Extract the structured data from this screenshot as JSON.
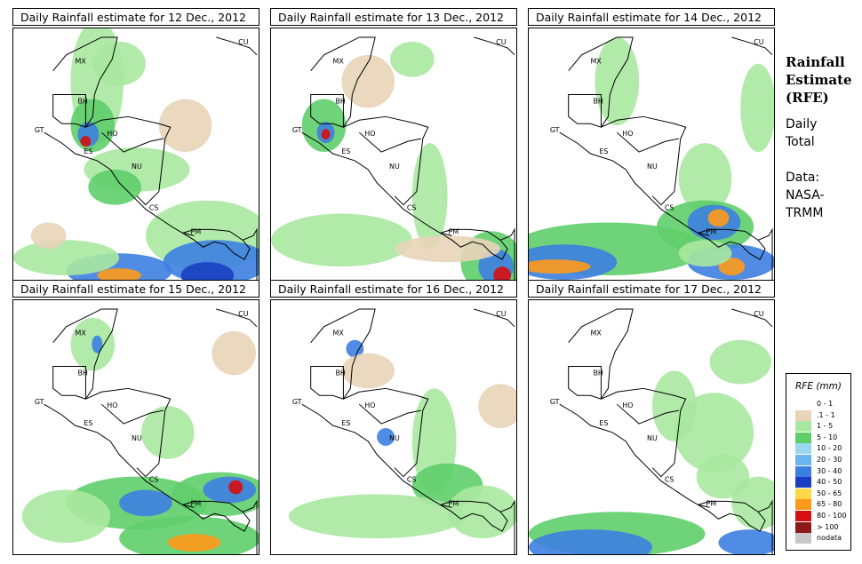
{
  "panels": [
    {
      "title": "Daily Rainfall estimate for  12 Dec., 2012",
      "blobs": [
        [
          95,
          60,
          30,
          70,
          "#a8e8a0"
        ],
        [
          90,
          110,
          25,
          30,
          "#5fce6a"
        ],
        [
          85,
          120,
          12,
          14,
          "#3d7fe0"
        ],
        [
          82,
          128,
          6,
          6,
          "#d61010"
        ],
        [
          120,
          40,
          30,
          25,
          "#a8e8a0"
        ],
        [
          140,
          160,
          60,
          25,
          "#a8e8a0"
        ],
        [
          115,
          180,
          30,
          20,
          "#5fce6a"
        ],
        [
          220,
          235,
          70,
          40,
          "#a8e8a0"
        ],
        [
          230,
          265,
          60,
          25,
          "#3d7fe0"
        ],
        [
          220,
          280,
          30,
          15,
          "#1a3fc0"
        ],
        [
          120,
          275,
          60,
          20,
          "#3d7fe0"
        ],
        [
          120,
          280,
          25,
          8,
          "#ff9a1a"
        ],
        [
          60,
          260,
          60,
          20,
          "#a8e8a0"
        ],
        [
          195,
          110,
          30,
          30,
          "#e8d4b8"
        ],
        [
          40,
          235,
          20,
          15,
          "#e8d4b8"
        ]
      ]
    },
    {
      "title": "Daily Rainfall estimate for  13 Dec., 2012",
      "blobs": [
        [
          60,
          110,
          25,
          30,
          "#5fce6a"
        ],
        [
          62,
          118,
          10,
          12,
          "#3d7fe0"
        ],
        [
          62,
          120,
          5,
          6,
          "#d61010"
        ],
        [
          80,
          240,
          80,
          30,
          "#a8e8a0"
        ],
        [
          180,
          190,
          20,
          60,
          "#a8e8a0"
        ],
        [
          250,
          265,
          35,
          35,
          "#5fce6a"
        ],
        [
          255,
          270,
          20,
          20,
          "#3d7fe0"
        ],
        [
          262,
          280,
          10,
          10,
          "#d61010"
        ],
        [
          110,
          60,
          30,
          30,
          "#e8d4b8"
        ],
        [
          160,
          35,
          25,
          20,
          "#a8e8a0"
        ],
        [
          200,
          250,
          60,
          15,
          "#e8d4b8"
        ]
      ]
    },
    {
      "title": "Daily Rainfall estimate for  14 Dec., 2012",
      "blobs": [
        [
          100,
          60,
          25,
          50,
          "#a8e8a0"
        ],
        [
          200,
          170,
          30,
          40,
          "#a8e8a0"
        ],
        [
          200,
          225,
          55,
          30,
          "#5fce6a"
        ],
        [
          210,
          220,
          30,
          20,
          "#3d7fe0"
        ],
        [
          215,
          215,
          12,
          10,
          "#ff9a1a"
        ],
        [
          90,
          250,
          110,
          30,
          "#5fce6a"
        ],
        [
          40,
          265,
          60,
          20,
          "#3d7fe0"
        ],
        [
          30,
          270,
          40,
          8,
          "#ff9a1a"
        ],
        [
          230,
          265,
          50,
          20,
          "#3d7fe0"
        ],
        [
          230,
          270,
          15,
          10,
          "#ff9a1a"
        ],
        [
          260,
          90,
          20,
          50,
          "#a8e8a0"
        ],
        [
          200,
          255,
          30,
          15,
          "#a8e8a0"
        ]
      ]
    },
    {
      "title": "Daily Rainfall estimate for  15 Dec., 2012",
      "blobs": [
        [
          235,
          220,
          55,
          25,
          "#5fce6a"
        ],
        [
          245,
          215,
          30,
          15,
          "#3d7fe0"
        ],
        [
          252,
          212,
          8,
          8,
          "#d61010"
        ],
        [
          140,
          230,
          80,
          30,
          "#5fce6a"
        ],
        [
          150,
          230,
          30,
          15,
          "#3d7fe0"
        ],
        [
          200,
          270,
          80,
          25,
          "#5fce6a"
        ],
        [
          205,
          275,
          30,
          10,
          "#ff9a1a"
        ],
        [
          60,
          245,
          50,
          30,
          "#a8e8a0"
        ],
        [
          175,
          150,
          30,
          30,
          "#a8e8a0"
        ],
        [
          90,
          50,
          25,
          30,
          "#a8e8a0"
        ],
        [
          95,
          50,
          6,
          10,
          "#3d7fe0"
        ],
        [
          250,
          60,
          25,
          25,
          "#e8d4b8"
        ]
      ]
    },
    {
      "title": "Daily Rainfall estimate for  16 Dec., 2012",
      "blobs": [
        [
          185,
          160,
          25,
          60,
          "#a8e8a0"
        ],
        [
          200,
          210,
          40,
          25,
          "#5fce6a"
        ],
        [
          120,
          245,
          100,
          25,
          "#a8e8a0"
        ],
        [
          240,
          240,
          40,
          30,
          "#a8e8a0"
        ],
        [
          95,
          55,
          10,
          10,
          "#3d7fe0"
        ],
        [
          110,
          80,
          30,
          20,
          "#e8d4b8"
        ],
        [
          130,
          155,
          10,
          10,
          "#3d7fe0"
        ],
        [
          260,
          120,
          25,
          25,
          "#e8d4b8"
        ]
      ]
    },
    {
      "title": "Daily Rainfall estimate for  17 Dec., 2012",
      "blobs": [
        [
          165,
          120,
          25,
          40,
          "#a8e8a0"
        ],
        [
          210,
          150,
          45,
          45,
          "#a8e8a0"
        ],
        [
          100,
          265,
          100,
          25,
          "#5fce6a"
        ],
        [
          70,
          280,
          70,
          20,
          "#3d7fe0"
        ],
        [
          250,
          275,
          35,
          15,
          "#3d7fe0"
        ],
        [
          240,
          70,
          35,
          25,
          "#a8e8a0"
        ],
        [
          220,
          200,
          30,
          25,
          "#a8e8a0"
        ],
        [
          260,
          230,
          30,
          30,
          "#a8e8a0"
        ]
      ]
    }
  ],
  "country_labels": [
    {
      "code": "CU"
    },
    {
      "code": "MX"
    },
    {
      "code": "BH"
    },
    {
      "code": "GT"
    },
    {
      "code": "HO"
    },
    {
      "code": "ES"
    },
    {
      "code": "NU"
    },
    {
      "code": "CS"
    },
    {
      "code": "PM"
    }
  ],
  "side_panel": {
    "title": "Rainfall Estimate (RFE)",
    "subtitle": "Daily Total",
    "data_label": "Data: NASA-TRMM"
  },
  "legend": {
    "title": "RFE (mm)",
    "items": [
      {
        "label": "0 - 1",
        "color": "#ffffff"
      },
      {
        "label": ".1 - 1",
        "color": "#e8d4b8"
      },
      {
        "label": "1 - 5",
        "color": "#a8e8a0"
      },
      {
        "label": "5 - 10",
        "color": "#5fce6a"
      },
      {
        "label": "10 - 20",
        "color": "#9ad8f0"
      },
      {
        "label": "20 - 30",
        "color": "#6ab4f0"
      },
      {
        "label": "30 - 40",
        "color": "#3d7fe0"
      },
      {
        "label": "40 - 50",
        "color": "#1a3fc0"
      },
      {
        "label": "50 - 65",
        "color": "#ffd84a"
      },
      {
        "label": "65 - 80",
        "color": "#ff9a1a"
      },
      {
        "label": "80 - 100",
        "color": "#d61010"
      },
      {
        "label": "> 100",
        "color": "#8c1a1a"
      },
      {
        "label": "nodata",
        "color": "#c8c8c8"
      }
    ]
  }
}
